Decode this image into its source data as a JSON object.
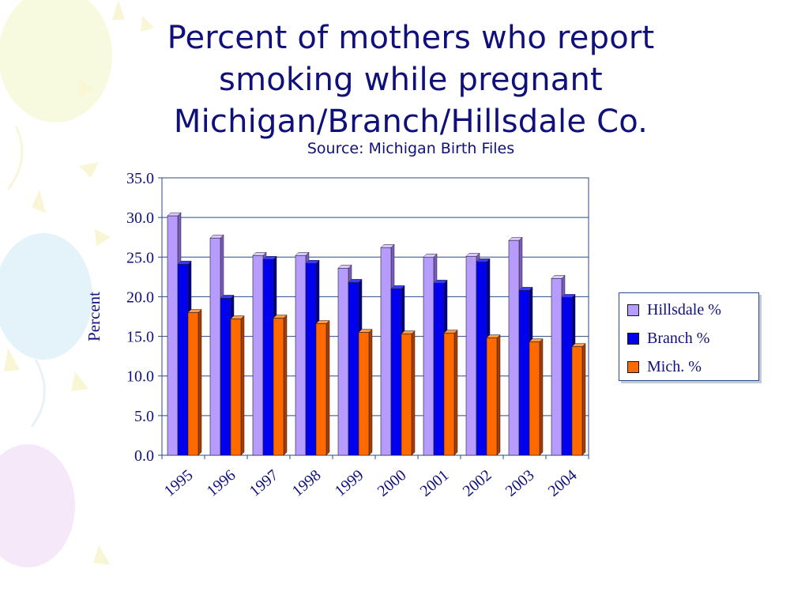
{
  "slide": {
    "title_lines": [
      "Percent of mothers who report",
      "smoking while pregnant",
      "Michigan/Branch/Hillsdale Co."
    ],
    "subtitle": "Source: Michigan Birth Files"
  },
  "colors": {
    "title": "#10107a",
    "hillsdale": "#b79cff",
    "branch": "#0000ee",
    "mich": "#ff6a00"
  },
  "chart_data": {
    "type": "bar",
    "categories": [
      "1995",
      "1996",
      "1997",
      "1998",
      "1999",
      "2000",
      "2001",
      "2002",
      "2003",
      "2004"
    ],
    "series": [
      {
        "name": "Hillsdale %",
        "values": [
          30.2,
          27.4,
          25.2,
          25.2,
          23.6,
          26.2,
          25.0,
          25.1,
          27.1,
          22.3
        ]
      },
      {
        "name": "Branch %",
        "values": [
          24.1,
          19.8,
          24.7,
          24.2,
          21.8,
          21.0,
          21.7,
          24.4,
          20.8,
          19.9
        ]
      },
      {
        "name": "Mich. %",
        "values": [
          18.0,
          17.2,
          17.3,
          16.6,
          15.5,
          15.3,
          15.4,
          14.8,
          14.3,
          13.7
        ]
      }
    ],
    "ylabel": "Percent",
    "xlabel": "",
    "ylim": [
      0,
      35
    ],
    "y_ticks": [
      "0.0",
      "5.0",
      "10.0",
      "15.0",
      "20.0",
      "25.0",
      "30.0",
      "35.0"
    ],
    "grid": true,
    "legend_position": "right"
  }
}
